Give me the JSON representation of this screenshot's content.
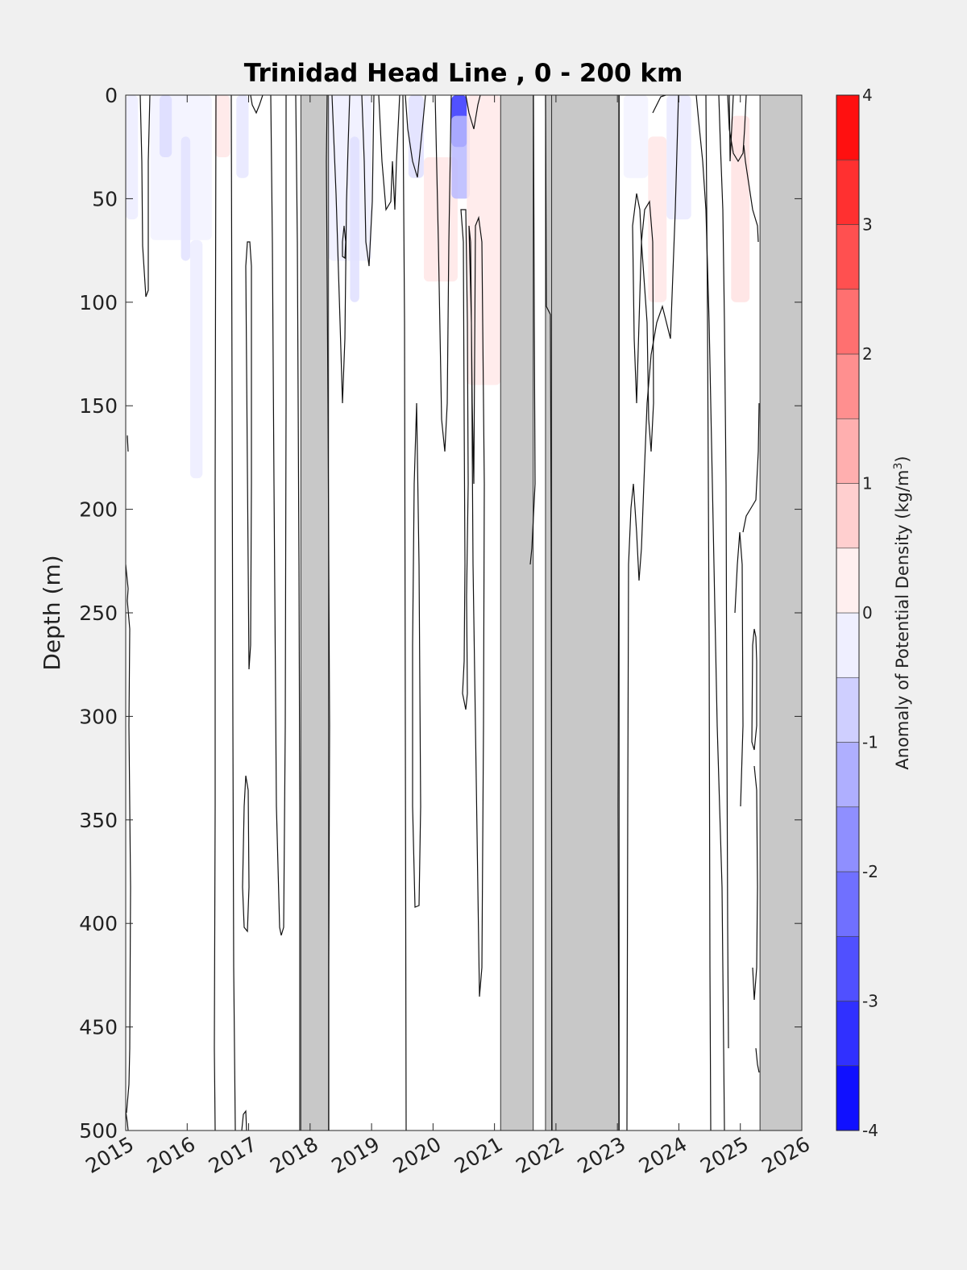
{
  "chart_data": {
    "type": "heatmap",
    "title": "Trinidad Head Line , 0 - 200 km",
    "ylabel": "Depth (m)",
    "xlabel": "",
    "colorbar_label_prefix": "Anomaly of Potential Density (kg/m",
    "colorbar_label_sup": "3",
    "colorbar_label_suffix": ")",
    "x_ticks": [
      "2015",
      "2016",
      "2017",
      "2018",
      "2019",
      "2020",
      "2021",
      "2022",
      "2023",
      "2024",
      "2025",
      "2026"
    ],
    "y_ticks": [
      "0",
      "50",
      "100",
      "150",
      "200",
      "250",
      "300",
      "350",
      "400",
      "450",
      "500"
    ],
    "xlim": [
      2015,
      2026
    ],
    "ylim": [
      0,
      500
    ],
    "y_reversed": true,
    "clim": [
      -4,
      4
    ],
    "colorbar_ticks": [
      "-4",
      "-3",
      "-2",
      "-1",
      "0",
      "1",
      "2",
      "3",
      "4"
    ],
    "colormap": "blue-white-red",
    "contour_levels_step": 0.25,
    "no_data_color": "#c8c8c8",
    "no_data_periods": [
      [
        2017.85,
        2018.3
      ],
      [
        2021.1,
        2021.63
      ],
      [
        2021.83,
        2021.93
      ],
      [
        2021.93,
        2023.03
      ],
      [
        2025.32,
        2026.0
      ]
    ],
    "anomaly_patches": [
      {
        "x0": 2015.0,
        "x1": 2015.2,
        "d0": 0,
        "d1": 60,
        "value": -0.3
      },
      {
        "x0": 2015.4,
        "x1": 2016.4,
        "d0": 0,
        "d1": 70,
        "value": -0.2
      },
      {
        "x0": 2015.55,
        "x1": 2015.75,
        "d0": 0,
        "d1": 30,
        "value": -0.55
      },
      {
        "x0": 2015.9,
        "x1": 2016.05,
        "d0": 20,
        "d1": 80,
        "value": -0.45
      },
      {
        "x0": 2016.05,
        "x1": 2016.25,
        "d0": 70,
        "d1": 185,
        "value": -0.3
      },
      {
        "x0": 2016.45,
        "x1": 2016.7,
        "d0": 0,
        "d1": 30,
        "value": 0.4
      },
      {
        "x0": 2016.8,
        "x1": 2017.0,
        "d0": 0,
        "d1": 40,
        "value": -0.4
      },
      {
        "x0": 2018.3,
        "x1": 2019.0,
        "d0": 0,
        "d1": 80,
        "value": -0.25
      },
      {
        "x0": 2018.65,
        "x1": 2018.8,
        "d0": 20,
        "d1": 100,
        "value": -0.5
      },
      {
        "x0": 2019.6,
        "x1": 2019.85,
        "d0": 0,
        "d1": 40,
        "value": -0.5
      },
      {
        "x0": 2019.85,
        "x1": 2020.4,
        "d0": 30,
        "d1": 90,
        "value": 0.4
      },
      {
        "x0": 2020.3,
        "x1": 2020.55,
        "d0": 0,
        "d1": 25,
        "value": -3.2
      },
      {
        "x0": 2020.3,
        "x1": 2020.6,
        "d0": 10,
        "d1": 50,
        "value": -1.1
      },
      {
        "x0": 2020.55,
        "x1": 2021.1,
        "d0": 0,
        "d1": 140,
        "value": 0.35
      },
      {
        "x0": 2023.1,
        "x1": 2023.5,
        "d0": 0,
        "d1": 40,
        "value": -0.2
      },
      {
        "x0": 2023.5,
        "x1": 2023.8,
        "d0": 20,
        "d1": 100,
        "value": 0.4
      },
      {
        "x0": 2023.8,
        "x1": 2024.2,
        "d0": 0,
        "d1": 60,
        "value": -0.35
      },
      {
        "x0": 2024.85,
        "x1": 2025.15,
        "d0": 10,
        "d1": 100,
        "value": 0.45
      }
    ]
  }
}
